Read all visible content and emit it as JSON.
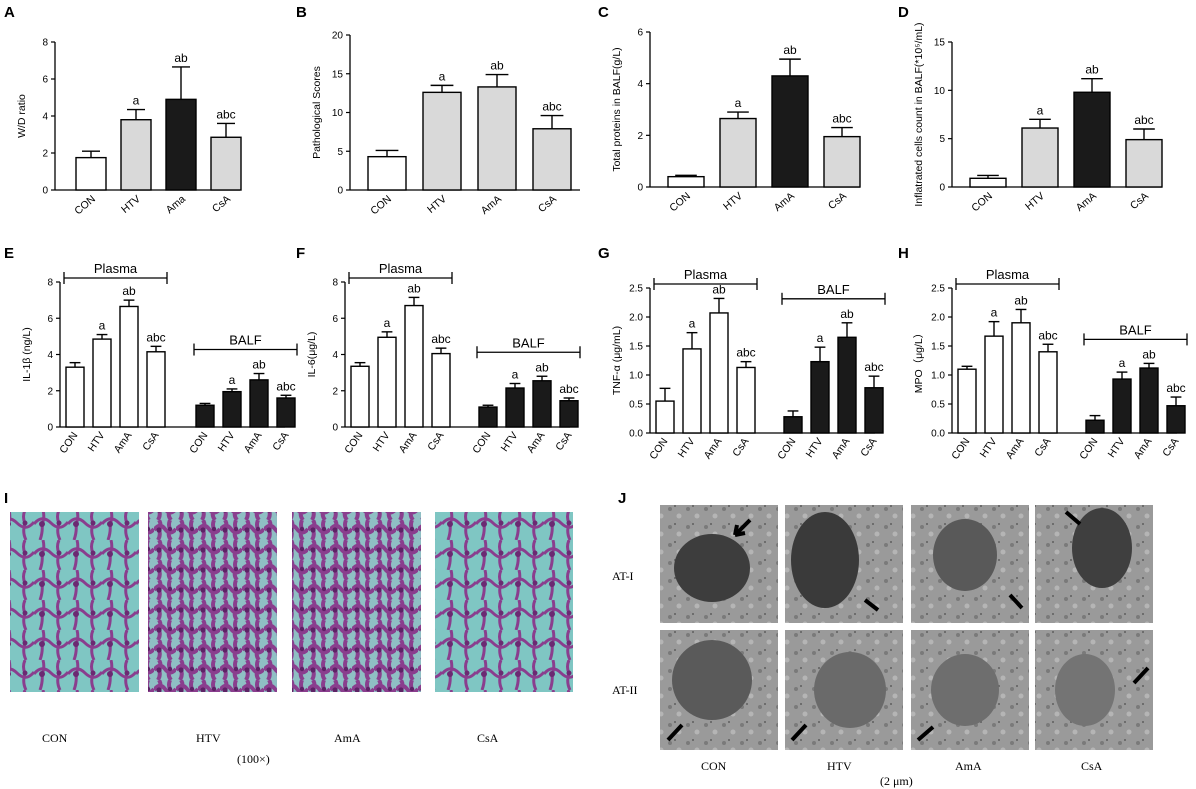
{
  "colors": {
    "white": "#ffffff",
    "gray": "#d9d9d9",
    "black": "#1a1a1a",
    "tissue": "#7fc6c3",
    "stain": "#8a3e8e",
    "em": "#8c8c8c"
  },
  "chart_data": [
    {
      "id": "A",
      "type": "bar",
      "ylabel": "W/D ratio",
      "ylim": [
        0,
        8
      ],
      "yticks": [
        0,
        2,
        4,
        6,
        8
      ],
      "categories": [
        "CON",
        "HTV",
        "Ama",
        "CsA"
      ],
      "values": [
        1.75,
        3.8,
        4.9,
        2.85
      ],
      "errors": [
        0.35,
        0.55,
        1.75,
        0.75
      ],
      "fills": [
        "white",
        "gray",
        "black",
        "gray"
      ],
      "labels": [
        "",
        "a",
        "ab",
        "abc"
      ]
    },
    {
      "id": "B",
      "type": "bar",
      "ylabel": "Pathological Scores",
      "ylim": [
        0,
        20
      ],
      "yticks": [
        0,
        5,
        10,
        15,
        20
      ],
      "categories": [
        "CON",
        "HTV",
        "AmA",
        "CsA"
      ],
      "values": [
        4.3,
        12.6,
        13.3,
        7.9
      ],
      "errors": [
        0.8,
        0.9,
        1.6,
        1.7
      ],
      "fills": [
        "white",
        "gray",
        "gray",
        "gray"
      ],
      "labels": [
        "",
        "a",
        "ab",
        "abc"
      ]
    },
    {
      "id": "C",
      "type": "bar",
      "ylabel": "Total proteins in BALF(g/L)",
      "ylim": [
        0,
        6
      ],
      "yticks": [
        0,
        2,
        4,
        6
      ],
      "categories": [
        "CON",
        "HTV",
        "AmA",
        "CsA"
      ],
      "values": [
        0.4,
        2.65,
        4.3,
        1.95
      ],
      "errors": [
        0.05,
        0.25,
        0.65,
        0.35
      ],
      "fills": [
        "white",
        "gray",
        "black",
        "gray"
      ],
      "labels": [
        "",
        "a",
        "ab",
        "abc"
      ]
    },
    {
      "id": "D",
      "type": "bar",
      "ylabel": "Inflatrated cells count in BALF(*10⁵/mL)",
      "ylim": [
        0,
        15
      ],
      "yticks": [
        0,
        5,
        10,
        15
      ],
      "categories": [
        "CON",
        "HTV",
        "AmA",
        "CsA"
      ],
      "values": [
        0.9,
        6.1,
        9.8,
        4.9
      ],
      "errors": [
        0.3,
        0.9,
        1.4,
        1.1
      ],
      "fills": [
        "white",
        "gray",
        "black",
        "gray"
      ],
      "labels": [
        "",
        "a",
        "ab",
        "abc"
      ]
    },
    {
      "id": "E",
      "type": "grouped-bar",
      "ylabel": "IL-1β (ng/L)",
      "ylim": [
        0,
        8
      ],
      "yticks": [
        0,
        2,
        4,
        6,
        8
      ],
      "categories": [
        "CON",
        "HTV",
        "AmA",
        "CsA",
        "CON",
        "HTV",
        "AmA",
        "CsA"
      ],
      "groups": [
        "Plasma",
        "BALF"
      ],
      "values": [
        3.3,
        4.85,
        6.65,
        4.15,
        1.2,
        1.95,
        2.6,
        1.6
      ],
      "errors": [
        0.25,
        0.25,
        0.35,
        0.3,
        0.1,
        0.15,
        0.35,
        0.15
      ],
      "fills": [
        "white",
        "white",
        "white",
        "white",
        "black",
        "black",
        "black",
        "black"
      ],
      "labels": [
        "",
        "a",
        "ab",
        "abc",
        "",
        "a",
        "ab",
        "abc"
      ]
    },
    {
      "id": "F",
      "type": "grouped-bar",
      "ylabel": "IL-6(μg/L)",
      "ylim": [
        0,
        8
      ],
      "yticks": [
        0,
        2,
        4,
        6,
        8
      ],
      "categories": [
        "CON",
        "HTV",
        "AmA",
        "CsA",
        "CON",
        "HTV",
        "AmA",
        "CsA"
      ],
      "groups": [
        "Plasma",
        "BALF"
      ],
      "values": [
        3.35,
        4.95,
        6.7,
        4.05,
        1.1,
        2.15,
        2.55,
        1.45
      ],
      "errors": [
        0.2,
        0.3,
        0.45,
        0.3,
        0.1,
        0.25,
        0.25,
        0.15
      ],
      "fills": [
        "white",
        "white",
        "white",
        "white",
        "black",
        "black",
        "black",
        "black"
      ],
      "labels": [
        "",
        "a",
        "ab",
        "abc",
        "",
        "a",
        "ab",
        "abc"
      ]
    },
    {
      "id": "G",
      "type": "grouped-bar",
      "ylabel": "TNF-α (μg/mL)",
      "ylim": [
        0,
        2.5
      ],
      "yticks": [
        0,
        0.5,
        1.0,
        1.5,
        2.0,
        2.5
      ],
      "categories": [
        "CON",
        "HTV",
        "AmA",
        "CsA",
        "CON",
        "HTV",
        "AmA",
        "CsA"
      ],
      "groups": [
        "Plasma",
        "BALF"
      ],
      "values": [
        0.55,
        1.45,
        2.07,
        1.13,
        0.28,
        1.23,
        1.65,
        0.78
      ],
      "errors": [
        0.22,
        0.28,
        0.25,
        0.1,
        0.1,
        0.25,
        0.25,
        0.2
      ],
      "fills": [
        "white",
        "white",
        "white",
        "white",
        "black",
        "black",
        "black",
        "black"
      ],
      "labels": [
        "",
        "a",
        "ab",
        "abc",
        "",
        "a",
        "ab",
        "abc"
      ]
    },
    {
      "id": "H",
      "type": "grouped-bar",
      "ylabel": "MPO（μg/L）",
      "ylim": [
        0,
        2.5
      ],
      "yticks": [
        0,
        0.5,
        1.0,
        1.5,
        2.0,
        2.5
      ],
      "categories": [
        "CON",
        "HTV",
        "AmA",
        "CsA",
        "CON",
        "HTV",
        "AmA",
        "CsA"
      ],
      "groups": [
        "Plasma",
        "BALF"
      ],
      "values": [
        1.1,
        1.67,
        1.9,
        1.4,
        0.22,
        0.93,
        1.12,
        0.47
      ],
      "errors": [
        0.05,
        0.25,
        0.23,
        0.13,
        0.08,
        0.12,
        0.08,
        0.15
      ],
      "fills": [
        "white",
        "white",
        "white",
        "white",
        "black",
        "black",
        "black",
        "black"
      ],
      "labels": [
        "",
        "a",
        "ab",
        "abc",
        "",
        "a",
        "ab",
        "abc"
      ]
    }
  ],
  "panel_I": {
    "letter": "I",
    "captions": [
      "CON",
      "HTV",
      "AmA",
      "CsA"
    ],
    "magnification": "(100×)"
  },
  "panel_J": {
    "letter": "J",
    "rows": [
      "AT-I",
      "AT-II"
    ],
    "captions": [
      "CON",
      "HTV",
      "AmA",
      "CsA"
    ],
    "scale": "(2 μm)"
  }
}
